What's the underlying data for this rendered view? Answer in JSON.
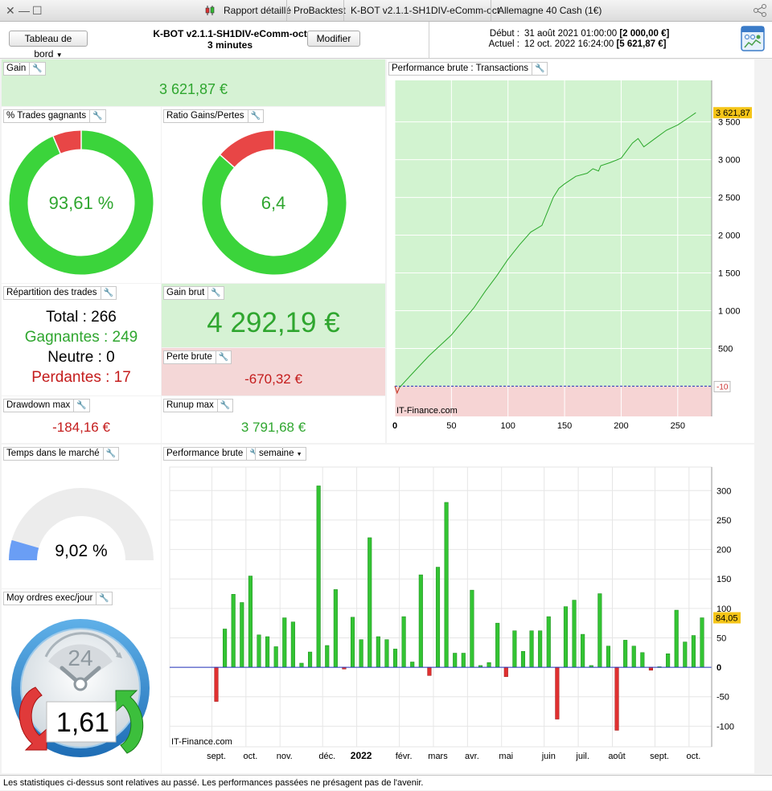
{
  "window": {
    "tabs": [
      "Rapport détaillé",
      "ProBacktest",
      "K-BOT v2.1.1-SH1DIV-eComm-oct",
      "Allemagne 40 Cash (1€)"
    ]
  },
  "toolbar": {
    "dashboard_label": "Tableau de bord",
    "strategy_name": "K-BOT v2.1.1-SH1DIV-eComm-oct",
    "timeframe": "3 minutes",
    "modify_label": "Modifier",
    "start_label": "Début :",
    "start_date": "31 août 2021 01:00:00",
    "start_value": "[2 000,00 €]",
    "current_label": "Actuel :",
    "current_date": "12 oct. 2022 16:24:00",
    "current_value": "[5 621,87 €]"
  },
  "panels": {
    "gain": {
      "title": "Gain",
      "value": "3 621,87 €"
    },
    "win_pct": {
      "title": "% Trades gagnants",
      "value": "93,61 %",
      "fraction": 0.9361
    },
    "ratio": {
      "title": "Ratio Gains/Pertes",
      "value": "6,4",
      "fraction": 0.865
    },
    "repartition": {
      "title": "Répartition des trades",
      "total_label": "Total : 266",
      "winners_label": "Gagnantes : 249",
      "neutral_label": "Neutre : 0",
      "losers_label": "Perdantes : 17"
    },
    "gross_gain": {
      "title": "Gain brut",
      "value": "4 292,19 €"
    },
    "gross_loss": {
      "title": "Perte brute",
      "value": "-670,32 €"
    },
    "drawdown": {
      "title": "Drawdown max",
      "value": "-184,16 €"
    },
    "runup": {
      "title": "Runup max",
      "value": "3 791,68 €"
    },
    "time_in_market": {
      "title": "Temps dans le marché",
      "value": "9,02 %",
      "fraction": 0.0902
    },
    "orders_per_day": {
      "title": "Moy ordres exec/jour",
      "value": "1,61",
      "clock_label": "24"
    },
    "perf_transactions": {
      "title": "Performance brute : Transactions"
    },
    "perf_weekly": {
      "title": "Performance brute",
      "period_option": "semaine"
    }
  },
  "chart_data": [
    {
      "type": "line",
      "title": "Performance brute : Transactions",
      "x_ticks": [
        0,
        50,
        100,
        150,
        200,
        250
      ],
      "y_ticks": [
        500,
        1000,
        1500,
        2000,
        2500,
        3000,
        3500
      ],
      "y_tick_labels": [
        "500",
        "1 000",
        "1 500",
        "2 000",
        "2 500",
        "3 000",
        "3 500"
      ],
      "xlim": [
        0,
        280
      ],
      "ylim": [
        -400,
        4050
      ],
      "last_value": 3621.87,
      "last_value_label": "3 621,87",
      "floor_label": "-10",
      "x": [
        0,
        2,
        4,
        10,
        20,
        30,
        40,
        50,
        60,
        70,
        80,
        90,
        100,
        110,
        120,
        130,
        140,
        145,
        150,
        160,
        170,
        175,
        180,
        182,
        190,
        200,
        210,
        215,
        220,
        230,
        240,
        250,
        260,
        266
      ],
      "y": [
        0,
        -90,
        -20,
        80,
        240,
        400,
        540,
        680,
        860,
        1040,
        1260,
        1460,
        1680,
        1870,
        2040,
        2130,
        2500,
        2620,
        2680,
        2780,
        2820,
        2880,
        2850,
        2920,
        2960,
        3020,
        3220,
        3280,
        3170,
        3280,
        3390,
        3460,
        3560,
        3621.87
      ],
      "watermark": "IT-Finance.com"
    },
    {
      "type": "bar",
      "title": "Performance brute",
      "period": "semaine",
      "x_labels": [
        "sept.",
        "oct.",
        "nov.",
        "déc.",
        "2022",
        "févr.",
        "mars",
        "avr.",
        "mai",
        "juin",
        "juil.",
        "août",
        "sept.",
        "oct."
      ],
      "x_label_week_index": [
        0,
        4,
        8,
        13,
        17,
        22,
        26,
        30,
        34,
        39,
        43,
        47,
        52,
        56
      ],
      "y_ticks": [
        -100,
        -50,
        0,
        50,
        100,
        150,
        200,
        250,
        300
      ],
      "ylim": [
        -135,
        340
      ],
      "values": [
        -58,
        65,
        124,
        110,
        155,
        55,
        52,
        35,
        84,
        77,
        7,
        26,
        308,
        37,
        132,
        -3,
        85,
        47,
        220,
        52,
        47,
        31,
        86,
        9,
        157,
        -14,
        170,
        280,
        24,
        24,
        131,
        3,
        8,
        75,
        -16,
        62,
        27,
        62,
        62,
        86,
        -88,
        103,
        114,
        56,
        3,
        125,
        36,
        -107,
        46,
        36,
        25,
        -5,
        1,
        23,
        97,
        43,
        54,
        84.05
      ],
      "last_value_label": "84,05",
      "watermark": "IT-Finance.com"
    }
  ],
  "footer": {
    "text": "Les statistiques ci-dessus sont relatives au passé. Les performances passées ne présagent pas de l'avenir."
  }
}
